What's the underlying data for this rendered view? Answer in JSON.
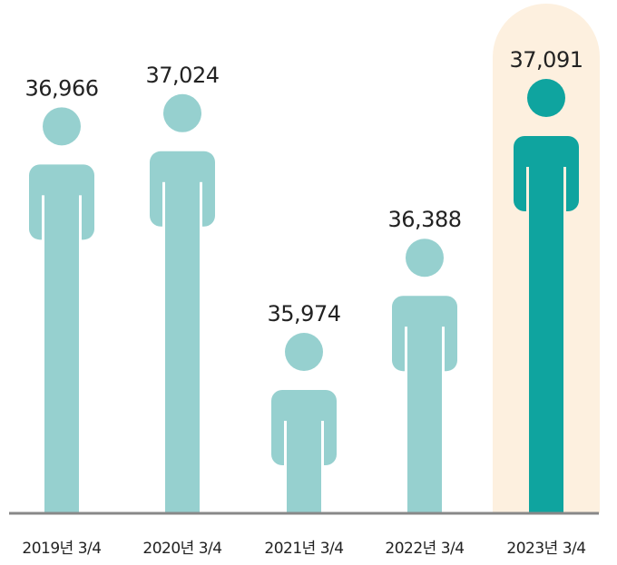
{
  "chart_data": {
    "type": "bar",
    "style": "pictogram",
    "categories": [
      "2019년 3/4",
      "2020년 3/4",
      "2021년 3/4",
      "2022년 3/4",
      "2023년 3/4"
    ],
    "values": [
      36966,
      37024,
      35974,
      36388,
      37091
    ],
    "value_labels": [
      "36,966",
      "37,024",
      "35,974",
      "36,388",
      "37,091"
    ],
    "highlight_index": 4,
    "title": "",
    "xlabel": "",
    "ylabel": "",
    "grid": false,
    "colors": {
      "bar": "#96d0cf",
      "highlight_bar": "#0fa49f",
      "highlight_background": "#fdf0df",
      "baseline": "#888888",
      "text": "#222222"
    },
    "icon": "person-icon"
  }
}
